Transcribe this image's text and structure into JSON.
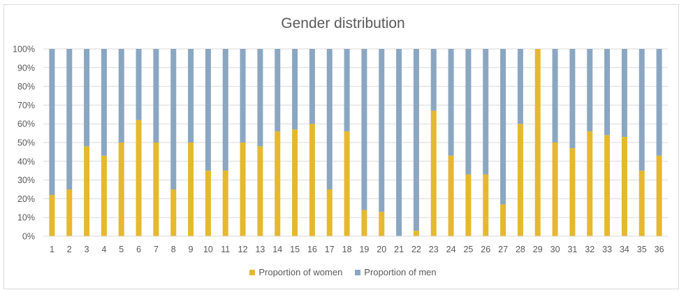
{
  "chart_data": {
    "type": "bar",
    "stacked": true,
    "normalized": true,
    "title": "Gender distribution",
    "categories": [
      "1",
      "2",
      "3",
      "4",
      "5",
      "6",
      "7",
      "8",
      "9",
      "10",
      "11",
      "12",
      "13",
      "14",
      "15",
      "16",
      "17",
      "18",
      "19",
      "20",
      "21",
      "22",
      "23",
      "24",
      "25",
      "26",
      "27",
      "28",
      "29",
      "30",
      "31",
      "32",
      "33",
      "34",
      "35",
      "36"
    ],
    "series": [
      {
        "name": "Proportion of women",
        "color": "#E6B82E",
        "values": [
          22,
          25,
          48,
          43,
          50,
          62,
          50,
          25,
          50,
          35,
          35,
          50,
          48,
          56,
          57,
          60,
          25,
          56,
          14,
          13,
          0,
          3,
          67,
          43,
          33,
          33,
          17,
          60,
          100,
          50,
          47,
          56,
          54,
          53,
          35,
          43
        ]
      },
      {
        "name": "Proportion of men",
        "color": "#8AA6C1",
        "values": [
          78,
          75,
          52,
          57,
          50,
          38,
          50,
          75,
          50,
          65,
          65,
          50,
          52,
          44,
          43,
          40,
          75,
          44,
          86,
          87,
          100,
          97,
          33,
          57,
          67,
          67,
          83,
          40,
          0,
          50,
          53,
          44,
          46,
          47,
          65,
          57
        ]
      }
    ],
    "y_ticks": [
      "0%",
      "10%",
      "20%",
      "30%",
      "40%",
      "50%",
      "60%",
      "70%",
      "80%",
      "90%",
      "100%"
    ],
    "ylim": [
      0,
      100
    ],
    "grid": true,
    "legend_position": "bottom"
  }
}
